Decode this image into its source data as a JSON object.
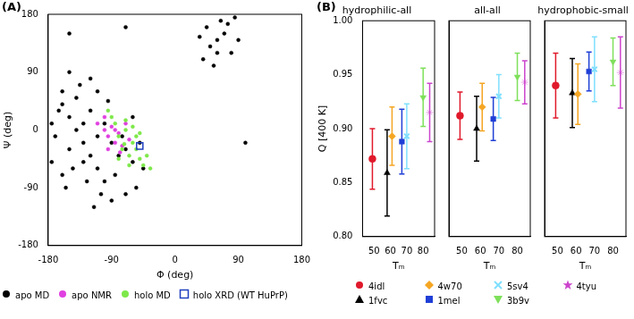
{
  "chart_data": [
    {
      "type": "scatter",
      "annotations": [
        "(A)"
      ],
      "x_label": "Φ (deg)",
      "y_label": "Ψ (deg)",
      "xlim": [
        -180,
        180
      ],
      "ylim": [
        -180,
        180
      ],
      "xticks": [
        -180,
        -90,
        0,
        90,
        180
      ],
      "yticks": [
        -180,
        -90,
        0,
        90,
        180
      ],
      "grid": false,
      "legend": "bottom",
      "series": [
        {
          "name": "apo MD",
          "color": "#000000",
          "marker": "circle",
          "x": [
            -160,
            -150,
            -140,
            -130,
            -120,
            -110,
            -100,
            -150,
            -170,
            -165,
            -140,
            -120,
            -100,
            -90,
            -80,
            -70,
            -60,
            -75,
            -110,
            -130,
            -145,
            -125,
            -105,
            -90,
            -115,
            -155,
            -175,
            -175,
            -160,
            -135,
            -110,
            -95,
            -60,
            -50,
            -45,
            -55,
            -70,
            -85,
            -130,
            -160,
            -120,
            -150,
            60,
            50,
            70,
            45,
            80,
            65,
            40,
            90,
            55,
            75,
            35,
            85,
            60,
            -150,
            -70,
            100
          ],
          "values": [
            40,
            20,
            0,
            -20,
            -40,
            -60,
            -80,
            -30,
            -10,
            30,
            50,
            30,
            10,
            -20,
            -40,
            -30,
            -50,
            -10,
            -10,
            10,
            -60,
            -80,
            -100,
            -110,
            -120,
            -90,
            -50,
            10,
            60,
            70,
            60,
            45,
            20,
            -20,
            -60,
            -90,
            -100,
            -70,
            -50,
            -70,
            80,
            90,
            140,
            130,
            150,
            160,
            120,
            170,
            110,
            140,
            100,
            165,
            145,
            175,
            120,
            150,
            160,
            -20
          ]
        },
        {
          "name": "apo NMR",
          "color": "#e040e0",
          "marker": "circle",
          "x": [
            -100,
            -95,
            -90,
            -85,
            -80,
            -75,
            -70,
            -65,
            -95,
            -110,
            -100,
            -85,
            -78
          ],
          "values": [
            0,
            -10,
            5,
            -20,
            -5,
            -25,
            10,
            -15,
            -30,
            10,
            20,
            0,
            -35
          ]
        },
        {
          "name": "holo MD",
          "color": "#7ee84a",
          "marker": "circle",
          "x": [
            -80,
            -70,
            -60,
            -75,
            -65,
            -55,
            -50,
            -45,
            -85,
            -90,
            -70,
            -60,
            -40,
            -55,
            -80,
            -65,
            -35,
            -95,
            -50,
            -72
          ],
          "values": [
            -10,
            0,
            -20,
            -30,
            -40,
            -30,
            -45,
            -55,
            10,
            20,
            15,
            5,
            -40,
            -10,
            -45,
            -55,
            -60,
            30,
            -5,
            -22
          ]
        },
        {
          "name": "holo XRD (WT HuPrP)",
          "color": "#1f3fbf",
          "marker": "square_open",
          "x": [
            -50
          ],
          "values": [
            -25
          ]
        }
      ]
    },
    {
      "type": "scatter",
      "annotations": [
        "(B)"
      ],
      "title": "hydrophilic-all",
      "x_label": "Tₘ",
      "y_label": "Q [400 K]",
      "xlim": [
        43,
        87
      ],
      "ylim": [
        0.8,
        1.0
      ],
      "xticks": [
        50,
        60,
        70,
        80
      ],
      "yticks": [
        {
          "value": 0.8,
          "label": "0.80"
        },
        {
          "value": 0.85,
          "label": "0.85"
        },
        {
          "value": 0.9,
          "label": "0.90"
        },
        {
          "value": 0.95,
          "label": "0.95"
        },
        {
          "value": 1.0,
          "label": "1.00"
        }
      ],
      "grid": false,
      "legend": "bottom",
      "series": [
        {
          "name": "4idl",
          "color": "#e0192b",
          "marker": "circle",
          "x": [
            49
          ],
          "values": [
            0.872
          ],
          "errors": [
            0.028
          ]
        },
        {
          "name": "1fvc",
          "color": "#000000",
          "marker": "triangle",
          "x": [
            58
          ],
          "values": [
            0.859
          ],
          "errors": [
            0.04
          ]
        },
        {
          "name": "4w70",
          "color": "#f5a623",
          "marker": "diamond",
          "x": [
            61
          ],
          "values": [
            0.893
          ],
          "errors": [
            0.027
          ]
        },
        {
          "name": "1mel",
          "color": "#1f3fd6",
          "marker": "square",
          "x": [
            67
          ],
          "values": [
            0.888
          ],
          "errors": [
            0.03
          ]
        },
        {
          "name": "5sv4",
          "color": "#7fdfff",
          "marker": "cross",
          "x": [
            70
          ],
          "values": [
            0.893
          ],
          "errors": [
            0.03
          ]
        },
        {
          "name": "3b9v",
          "color": "#7ee05a",
          "marker": "triangle_down",
          "x": [
            80
          ],
          "values": [
            0.929
          ],
          "errors": [
            0.027
          ]
        },
        {
          "name": "4tyu",
          "color": "#cc44cc",
          "marker": "star",
          "x": [
            84
          ],
          "values": [
            0.915
          ],
          "errors": [
            0.027
          ]
        }
      ]
    },
    {
      "type": "scatter",
      "title": "all-all",
      "x_label": "Tₘ",
      "xlim": [
        43,
        87
      ],
      "ylim": [
        0.8,
        1.0
      ],
      "xticks": [
        50,
        60,
        70,
        80
      ],
      "yticks": [
        {
          "value": 0.8,
          "label": "0.80"
        },
        {
          "value": 0.85,
          "label": "0.85"
        },
        {
          "value": 0.9,
          "label": "0.90"
        },
        {
          "value": 0.95,
          "label": "0.95"
        },
        {
          "value": 1.0,
          "label": "1.00"
        }
      ],
      "grid": false,
      "tick_labels": "x",
      "series": [
        {
          "name": "4idl",
          "color": "#e0192b",
          "marker": "circle",
          "x": [
            49
          ],
          "values": [
            0.912
          ],
          "errors": [
            0.022
          ]
        },
        {
          "name": "1fvc",
          "color": "#000000",
          "marker": "triangle",
          "x": [
            58
          ],
          "values": [
            0.9
          ],
          "errors": [
            0.03
          ]
        },
        {
          "name": "4w70",
          "color": "#f5a623",
          "marker": "diamond",
          "x": [
            61
          ],
          "values": [
            0.92
          ],
          "errors": [
            0.022
          ]
        },
        {
          "name": "1mel",
          "color": "#1f3fd6",
          "marker": "square",
          "x": [
            67
          ],
          "values": [
            0.909
          ],
          "errors": [
            0.02
          ]
        },
        {
          "name": "5sv4",
          "color": "#7fdfff",
          "marker": "cross",
          "x": [
            70
          ],
          "values": [
            0.93
          ],
          "errors": [
            0.02
          ]
        },
        {
          "name": "3b9v",
          "color": "#7ee05a",
          "marker": "triangle_down",
          "x": [
            80
          ],
          "values": [
            0.948
          ],
          "errors": [
            0.022
          ]
        },
        {
          "name": "4tyu",
          "color": "#cc44cc",
          "marker": "star",
          "x": [
            84
          ],
          "values": [
            0.943
          ],
          "errors": [
            0.02
          ]
        }
      ]
    },
    {
      "type": "scatter",
      "title": "hydrophobic-small",
      "x_label": "Tₘ",
      "xlim": [
        43,
        87
      ],
      "ylim": [
        0.8,
        1.0
      ],
      "xticks": [
        50,
        60,
        70,
        80
      ],
      "yticks": [
        {
          "value": 0.8,
          "label": "0.80"
        },
        {
          "value": 0.85,
          "label": "0.85"
        },
        {
          "value": 0.9,
          "label": "0.90"
        },
        {
          "value": 0.95,
          "label": "0.95"
        },
        {
          "value": 1.0,
          "label": "1.00"
        }
      ],
      "grid": false,
      "tick_labels": "x",
      "series": [
        {
          "name": "4idl",
          "color": "#e0192b",
          "marker": "circle",
          "x": [
            49
          ],
          "values": [
            0.94
          ],
          "errors": [
            0.03
          ]
        },
        {
          "name": "1fvc",
          "color": "#000000",
          "marker": "triangle",
          "x": [
            58
          ],
          "values": [
            0.933
          ],
          "errors": [
            0.032
          ]
        },
        {
          "name": "4w70",
          "color": "#f5a623",
          "marker": "diamond",
          "x": [
            61
          ],
          "values": [
            0.932
          ],
          "errors": [
            0.028
          ]
        },
        {
          "name": "1mel",
          "color": "#1f3fd6",
          "marker": "square",
          "x": [
            67
          ],
          "values": [
            0.953
          ],
          "errors": [
            0.018
          ]
        },
        {
          "name": "5sv4",
          "color": "#7fdfff",
          "marker": "cross",
          "x": [
            70
          ],
          "values": [
            0.955
          ],
          "errors": [
            0.03
          ]
        },
        {
          "name": "3b9v",
          "color": "#7ee05a",
          "marker": "triangle_down",
          "x": [
            80
          ],
          "values": [
            0.962
          ],
          "errors": [
            0.022
          ]
        },
        {
          "name": "4tyu",
          "color": "#cc44cc",
          "marker": "star",
          "x": [
            84
          ],
          "values": [
            0.952
          ],
          "errors": [
            0.033
          ]
        }
      ]
    }
  ]
}
